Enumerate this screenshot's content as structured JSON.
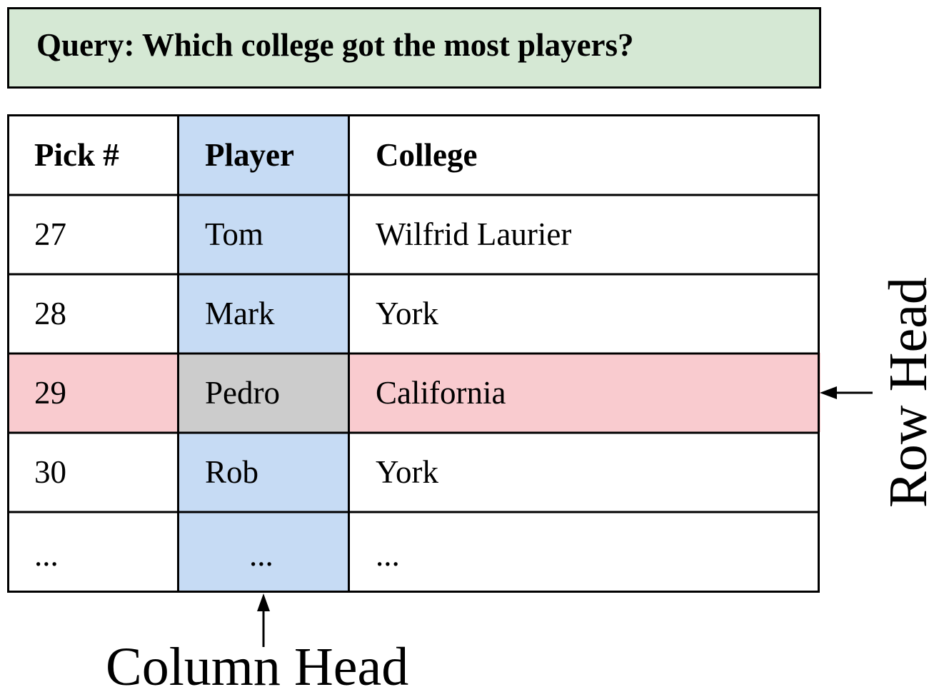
{
  "query": {
    "text": "Query: Which college got the most players?"
  },
  "table": {
    "headers": [
      "Pick #",
      "Player",
      "College"
    ],
    "rows": [
      [
        "27",
        "Tom",
        "Wilfrid Laurier"
      ],
      [
        "28",
        "Mark",
        "York"
      ],
      [
        "29",
        "Pedro",
        "California"
      ],
      [
        "30",
        "Rob",
        "York"
      ],
      [
        "...",
        "...",
        "..."
      ]
    ],
    "highlighted_row_index": 2,
    "highlighted_column_index": 1
  },
  "annotations": {
    "row_head": "Row Head",
    "column_head": "Column Head"
  },
  "colors": {
    "query_background": "#d5e8d4",
    "column_highlight": "#c6dbf4",
    "row_highlight": "#f9cbcf",
    "intersection": "#cccccc",
    "border": "#000000"
  }
}
